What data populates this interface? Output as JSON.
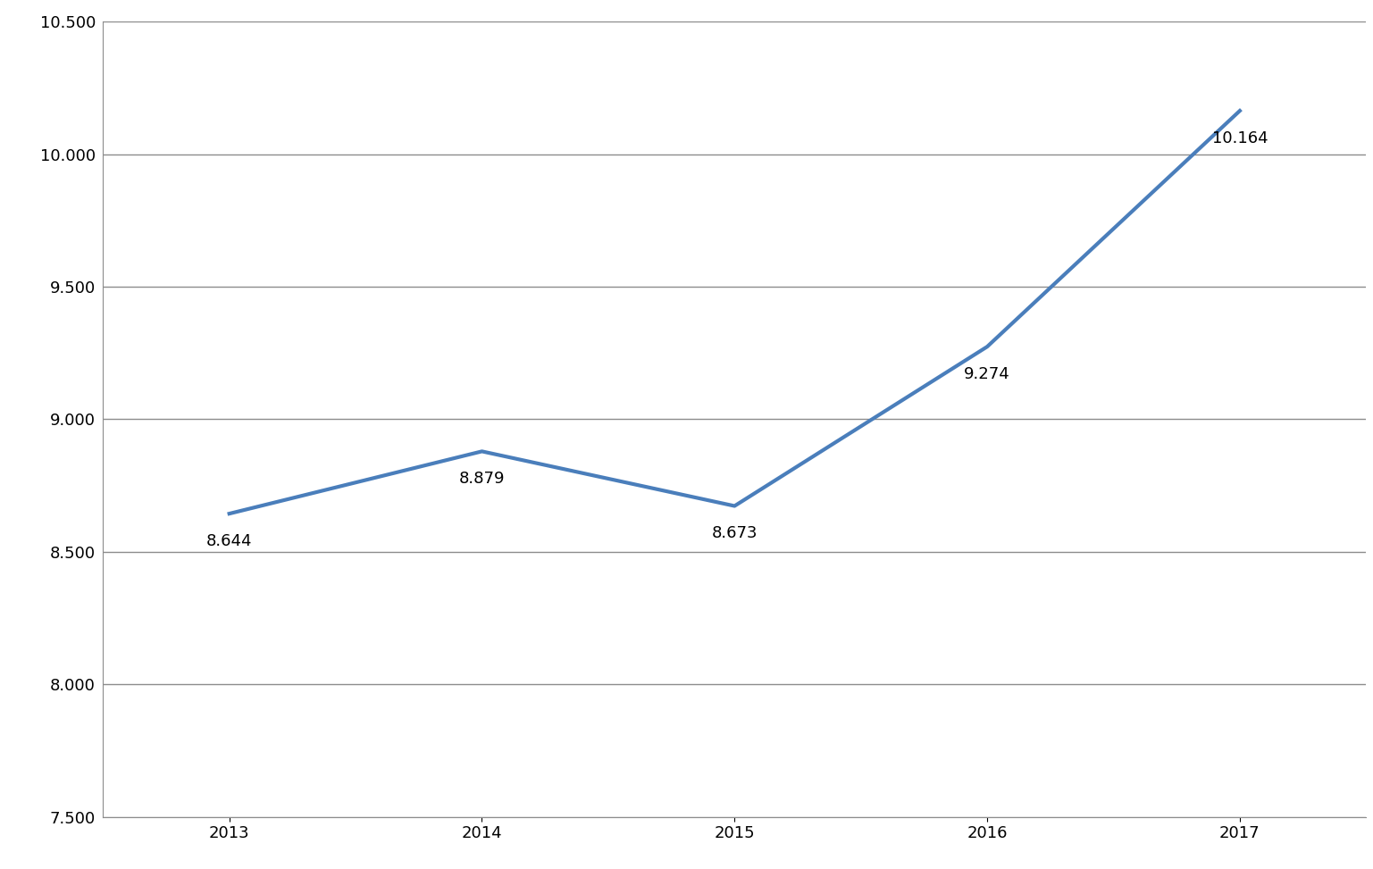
{
  "chart_data": {
    "type": "line",
    "categories": [
      "2013",
      "2014",
      "2015",
      "2016",
      "2017"
    ],
    "values": [
      8644,
      8879,
      8673,
      9274,
      10164
    ],
    "value_labels": [
      "8.644",
      "8.879",
      "8.673",
      "9.274",
      "10.164"
    ],
    "color": "#4a7ebb",
    "ylim": [
      7500,
      10500
    ],
    "yticks": [
      {
        "value": 7500,
        "label": "7.500"
      },
      {
        "value": 8000,
        "label": "8.000"
      },
      {
        "value": 8500,
        "label": "8.500"
      },
      {
        "value": 9000,
        "label": "9.000"
      },
      {
        "value": 9500,
        "label": "9.500"
      },
      {
        "value": 10000,
        "label": "10.000"
      },
      {
        "value": 10500,
        "label": "10.500"
      }
    ],
    "grid": true,
    "data_labels": true
  }
}
